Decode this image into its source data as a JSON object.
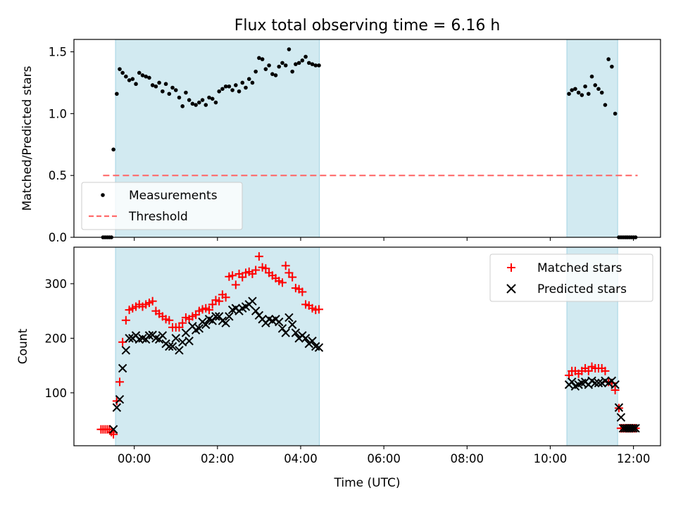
{
  "title": "Flux total observing time = 6.16 h",
  "colors": {
    "band": "#add8e6",
    "measurements": "#000000",
    "threshold": "#ff6b6b",
    "matched": "#ff0000",
    "predicted": "#000000"
  },
  "chart_data": [
    {
      "type": "scatter",
      "ylabel": "Matched/Predicted stars",
      "xlim": [
        -1.45,
        12.65
      ],
      "ylim": [
        0,
        1.6
      ],
      "yticks": [
        0.0,
        0.5,
        1.0,
        1.5
      ],
      "ytick_labels": [
        "0.0",
        "0.5",
        "1.0",
        "1.5"
      ],
      "legend": {
        "position": "lower-left",
        "entries": [
          "Measurements",
          "Threshold"
        ]
      },
      "observing_bands": [
        [
          -0.45,
          4.45
        ],
        [
          10.4,
          11.62
        ]
      ],
      "threshold": {
        "name": "Threshold",
        "value": 0.5,
        "x_range": [
          -0.75,
          12.1
        ]
      },
      "series": [
        {
          "name": "Measurements",
          "x": [
            -0.75,
            -0.7,
            -0.65,
            -0.6,
            -0.55,
            -0.5,
            -0.42,
            -0.35,
            -0.28,
            -0.2,
            -0.12,
            -0.04,
            0.04,
            0.12,
            0.2,
            0.28,
            0.36,
            0.44,
            0.52,
            0.6,
            0.68,
            0.76,
            0.84,
            0.92,
            1.0,
            1.08,
            1.16,
            1.24,
            1.32,
            1.4,
            1.48,
            1.56,
            1.64,
            1.72,
            1.8,
            1.88,
            1.96,
            2.04,
            2.12,
            2.2,
            2.28,
            2.36,
            2.44,
            2.52,
            2.6,
            2.68,
            2.76,
            2.84,
            2.92,
            3.0,
            3.08,
            3.16,
            3.24,
            3.32,
            3.4,
            3.48,
            3.56,
            3.64,
            3.72,
            3.8,
            3.88,
            3.96,
            4.04,
            4.12,
            4.2,
            4.28,
            4.36,
            4.44,
            10.45,
            10.52,
            10.6,
            10.68,
            10.76,
            10.84,
            10.92,
            11.0,
            11.08,
            11.16,
            11.24,
            11.32,
            11.4,
            11.48,
            11.56,
            11.65,
            11.7,
            11.75,
            11.8,
            11.85,
            11.9,
            11.95,
            12.0,
            12.05
          ],
          "y": [
            0,
            0,
            0,
            0,
            0,
            0.71,
            1.16,
            1.36,
            1.33,
            1.3,
            1.27,
            1.28,
            1.24,
            1.33,
            1.31,
            1.3,
            1.29,
            1.23,
            1.22,
            1.25,
            1.18,
            1.24,
            1.16,
            1.21,
            1.19,
            1.13,
            1.06,
            1.17,
            1.11,
            1.08,
            1.07,
            1.09,
            1.11,
            1.07,
            1.13,
            1.12,
            1.09,
            1.18,
            1.2,
            1.22,
            1.22,
            1.19,
            1.23,
            1.18,
            1.25,
            1.21,
            1.28,
            1.25,
            1.34,
            1.45,
            1.44,
            1.36,
            1.39,
            1.32,
            1.31,
            1.38,
            1.41,
            1.39,
            1.52,
            1.34,
            1.4,
            1.41,
            1.43,
            1.46,
            1.41,
            1.4,
            1.39,
            1.39,
            1.16,
            1.19,
            1.2,
            1.17,
            1.15,
            1.22,
            1.16,
            1.3,
            1.23,
            1.2,
            1.17,
            1.07,
            1.44,
            1.38,
            1.0,
            0,
            0,
            0,
            0,
            0,
            0,
            0,
            0,
            0
          ]
        }
      ]
    },
    {
      "type": "scatter",
      "xlabel": "Time (UTC)",
      "ylabel": "Count",
      "xlim": [
        -1.45,
        12.65
      ],
      "ylim": [
        3,
        367
      ],
      "xticks": [
        0,
        2,
        4,
        6,
        8,
        10,
        12
      ],
      "xtick_labels": [
        "00:00",
        "02:00",
        "04:00",
        "06:00",
        "08:00",
        "10:00",
        "12:00"
      ],
      "yticks": [
        100,
        200,
        300
      ],
      "ytick_labels": [
        "100",
        "200",
        "300"
      ],
      "legend": {
        "position": "top-right",
        "entries": [
          "Matched stars",
          "Predicted stars"
        ]
      },
      "observing_bands": [
        [
          -0.45,
          4.45
        ],
        [
          10.4,
          11.62
        ]
      ],
      "series": [
        {
          "name": "Matched stars",
          "marker": "+",
          "x": [
            -0.8,
            -0.75,
            -0.7,
            -0.65,
            -0.6,
            -0.55,
            -0.5,
            -0.42,
            -0.35,
            -0.28,
            -0.2,
            -0.12,
            -0.04,
            0.04,
            0.12,
            0.2,
            0.28,
            0.36,
            0.44,
            0.52,
            0.6,
            0.68,
            0.76,
            0.84,
            0.92,
            1.0,
            1.08,
            1.16,
            1.24,
            1.32,
            1.4,
            1.48,
            1.56,
            1.64,
            1.72,
            1.8,
            1.88,
            1.96,
            2.04,
            2.12,
            2.2,
            2.28,
            2.36,
            2.44,
            2.52,
            2.6,
            2.68,
            2.76,
            2.84,
            2.92,
            3.0,
            3.08,
            3.16,
            3.24,
            3.32,
            3.4,
            3.48,
            3.56,
            3.64,
            3.72,
            3.8,
            3.88,
            3.96,
            4.04,
            4.12,
            4.2,
            4.28,
            4.36,
            4.44,
            10.45,
            10.52,
            10.6,
            10.68,
            10.76,
            10.84,
            10.92,
            11.0,
            11.08,
            11.16,
            11.24,
            11.32,
            11.4,
            11.48,
            11.56,
            11.65,
            11.7,
            11.75,
            11.8,
            11.85,
            11.9,
            11.95,
            12.0,
            12.05
          ],
          "y": [
            33,
            33,
            33,
            33,
            33,
            28,
            24,
            85,
            120,
            193,
            233,
            252,
            255,
            258,
            262,
            258,
            262,
            265,
            268,
            250,
            245,
            240,
            235,
            233,
            220,
            220,
            220,
            228,
            238,
            235,
            240,
            243,
            250,
            253,
            255,
            252,
            262,
            270,
            268,
            280,
            275,
            313,
            315,
            298,
            318,
            312,
            320,
            322,
            318,
            325,
            350,
            330,
            328,
            320,
            315,
            310,
            305,
            302,
            333,
            320,
            312,
            292,
            290,
            285,
            262,
            260,
            255,
            252,
            253,
            132,
            140,
            140,
            135,
            140,
            145,
            140,
            148,
            145,
            145,
            145,
            140,
            120,
            118,
            105,
            72,
            35,
            35,
            35,
            35,
            35,
            35,
            35,
            35
          ]
        },
        {
          "name": "Predicted stars",
          "marker": "x",
          "x": [
            -0.5,
            -0.42,
            -0.35,
            -0.28,
            -0.2,
            -0.12,
            -0.04,
            0.04,
            0.12,
            0.2,
            0.28,
            0.36,
            0.44,
            0.52,
            0.6,
            0.68,
            0.76,
            0.84,
            0.92,
            1.0,
            1.08,
            1.16,
            1.24,
            1.32,
            1.4,
            1.48,
            1.56,
            1.64,
            1.72,
            1.8,
            1.88,
            1.96,
            2.04,
            2.12,
            2.2,
            2.28,
            2.36,
            2.44,
            2.52,
            2.6,
            2.68,
            2.76,
            2.84,
            2.92,
            3.0,
            3.08,
            3.16,
            3.24,
            3.32,
            3.4,
            3.48,
            3.56,
            3.64,
            3.72,
            3.8,
            3.88,
            3.96,
            4.04,
            4.12,
            4.2,
            4.28,
            4.36,
            4.44,
            10.45,
            10.52,
            10.6,
            10.68,
            10.76,
            10.84,
            10.92,
            11.0,
            11.08,
            11.16,
            11.24,
            11.32,
            11.4,
            11.48,
            11.56,
            11.65,
            11.7,
            11.75,
            11.8,
            11.85,
            11.9,
            11.95,
            12.0,
            12.05
          ],
          "y": [
            33,
            73,
            88,
            145,
            178,
            200,
            200,
            205,
            198,
            200,
            198,
            205,
            206,
            200,
            198,
            205,
            190,
            185,
            185,
            200,
            178,
            193,
            210,
            195,
            222,
            215,
            218,
            230,
            225,
            235,
            232,
            240,
            240,
            232,
            228,
            240,
            252,
            255,
            250,
            255,
            258,
            262,
            268,
            250,
            242,
            235,
            228,
            235,
            232,
            235,
            230,
            218,
            210,
            238,
            225,
            210,
            200,
            205,
            200,
            190,
            195,
            185,
            183,
            115,
            120,
            112,
            115,
            118,
            120,
            115,
            122,
            118,
            118,
            118,
            122,
            118,
            122,
            115,
            73,
            55,
            35,
            35,
            35,
            35,
            35,
            35,
            35
          ]
        }
      ]
    }
  ]
}
